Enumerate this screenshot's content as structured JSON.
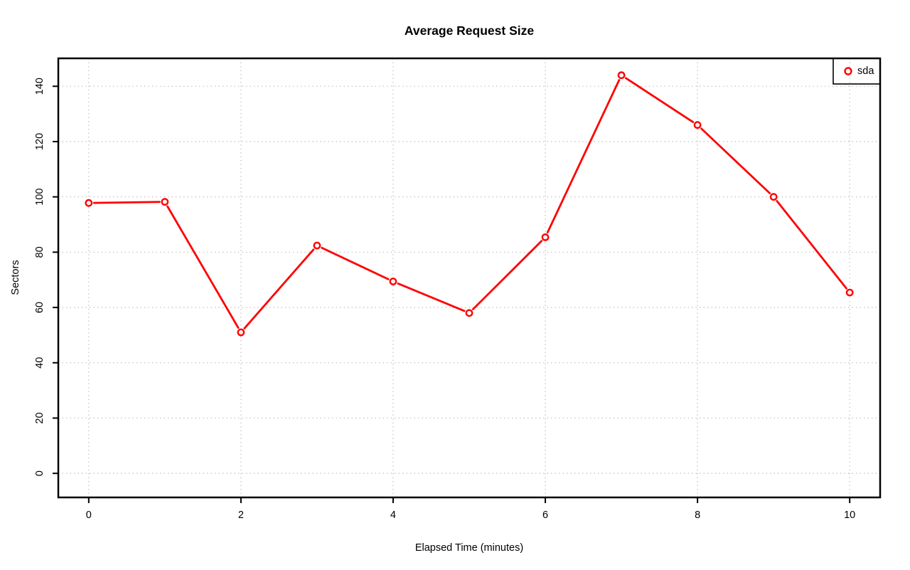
{
  "chart_data": {
    "type": "line",
    "title": "Average Request Size",
    "xlabel": "Elapsed Time (minutes)",
    "ylabel": "Sectors",
    "x": [
      0,
      1,
      2,
      3,
      4,
      5,
      6,
      7,
      8,
      9,
      10
    ],
    "series": [
      {
        "name": "sda",
        "marker": "open-circle",
        "color": "#ff0000",
        "values": [
          97.8,
          98.2,
          51.0,
          82.4,
          69.4,
          58.0,
          85.4,
          144.0,
          126.0,
          100.0,
          65.4
        ]
      }
    ],
    "xticks": [
      0,
      2,
      4,
      6,
      8,
      10
    ],
    "yticks": [
      0,
      20,
      40,
      60,
      80,
      100,
      120,
      140
    ],
    "xlim": [
      -0.4,
      10.4
    ],
    "ylim": [
      -8.7,
      150.1
    ],
    "grid": "dotted",
    "legend": {
      "position": "topright",
      "entries": [
        "sda"
      ]
    },
    "colors": {
      "line": "#ff0000",
      "grid": "#c4c4c4",
      "axis": "#000000",
      "text": "#000000",
      "background": "#ffffff"
    }
  }
}
